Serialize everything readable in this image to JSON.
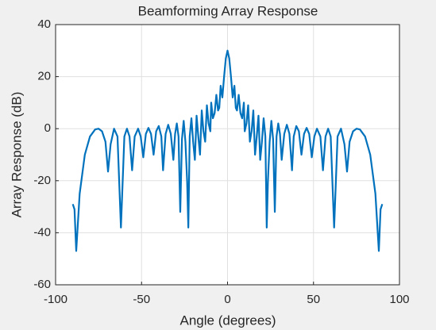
{
  "chart_data": {
    "type": "line",
    "title": "Beamforming Array Response",
    "xlabel": "Angle (degrees)",
    "ylabel": "Array Response (dB)",
    "xlim": [
      -100,
      100
    ],
    "xticks": [
      -100,
      -50,
      0,
      50,
      100
    ],
    "ylim": [
      -60,
      40
    ],
    "yticks": [
      -60,
      -40,
      -20,
      0,
      20,
      40
    ],
    "grid": true,
    "series": [
      {
        "color": "#0072bd",
        "x": [
          -90,
          -89,
          -88,
          -86,
          -83,
          -80,
          -77,
          -75,
          -73,
          -71,
          -69.5,
          -68,
          -66,
          -64,
          -62,
          -60,
          -58.5,
          -57,
          -55.5,
          -54,
          -52,
          -50.5,
          -49,
          -47.5,
          -46,
          -44.5,
          -43,
          -41.5,
          -40,
          -38.5,
          -37.5,
          -36,
          -34.5,
          -33,
          -31.5,
          -30.5,
          -29.5,
          -28.5,
          -27.5,
          -26.5,
          -25.5,
          -24.5,
          -23.5,
          -22.8,
          -22,
          -21,
          -20,
          -19,
          -18,
          -17,
          -16,
          -15,
          -14,
          -13,
          -12,
          -11,
          -10,
          -9.5,
          -8.5,
          -7.5,
          -6.5,
          -5.5,
          -4.8,
          -4,
          -3,
          -2,
          -1,
          0,
          1,
          2,
          3,
          4,
          4.8,
          5.5,
          6.5,
          7.5,
          8.5,
          9.5,
          10,
          11,
          12,
          13,
          14,
          15,
          16,
          17,
          18,
          19,
          20,
          21,
          22,
          22.8,
          23.5,
          24.5,
          25.5,
          26.5,
          27.5,
          28.5,
          29.5,
          30.5,
          31.5,
          33,
          34.5,
          36,
          37.5,
          38.5,
          40,
          41.5,
          43,
          44.5,
          46,
          47.5,
          49,
          50.5,
          52,
          54,
          55.5,
          57,
          58.5,
          60,
          62,
          64,
          66,
          68,
          69.5,
          71,
          73,
          75,
          77,
          80,
          83,
          86,
          88,
          89,
          90
        ],
        "values": [
          -29,
          -31,
          -47,
          -25,
          -10,
          -3,
          -0.3,
          0,
          -1,
          -5,
          -16.5,
          -6,
          0,
          -3,
          -38,
          -3,
          0,
          -3,
          -16,
          -3,
          0,
          -3,
          -11,
          -2,
          0.3,
          -2,
          -10,
          -1,
          1,
          -3,
          -16,
          -2,
          1.5,
          -2,
          -12,
          -2,
          2,
          -3,
          -32,
          -4,
          3,
          -5,
          -20,
          -38,
          -3,
          4,
          -5,
          -12,
          5,
          -3,
          -10,
          7,
          -1,
          -5,
          9,
          2,
          -1,
          10,
          4,
          6,
          13,
          7,
          8,
          16.5,
          12,
          20,
          27,
          30,
          27,
          20,
          12,
          16.5,
          8,
          7,
          13,
          6,
          4,
          10,
          -1,
          2,
          9,
          -5,
          -1,
          7,
          -10,
          -3,
          5,
          -12,
          -5,
          4,
          -3,
          -38,
          -20,
          -5,
          3,
          -4,
          -32,
          -3,
          2,
          -2,
          -12,
          -2,
          1.5,
          -2,
          -16,
          -3,
          1,
          -1,
          -10,
          -2,
          0.3,
          -2,
          -11,
          -3,
          0,
          -3,
          -16,
          -3,
          0,
          -3,
          -38,
          -3,
          0,
          -6,
          -16.5,
          -5,
          -1,
          0,
          -0.3,
          -3,
          -10,
          -25,
          -47,
          -31,
          -29
        ]
      }
    ]
  }
}
